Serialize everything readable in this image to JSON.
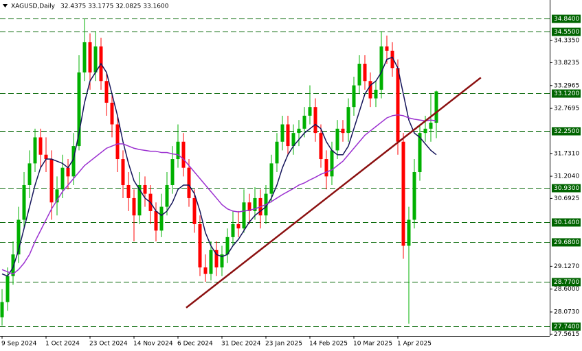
{
  "header": {
    "symbol": "XAGUSD,Daily",
    "quote": "32.4375 33.1775 32.0825 33.1600"
  },
  "chart_data": {
    "type": "candlestick",
    "categories": [
      "9 Sep 2024",
      null,
      null,
      null,
      null,
      null,
      null,
      null,
      "1 Oct 2024",
      null,
      null,
      null,
      null,
      null,
      null,
      null,
      "23 Oct 2024",
      null,
      null,
      null,
      null,
      null,
      null,
      null,
      "14 Nov 2024",
      null,
      null,
      null,
      null,
      null,
      null,
      null,
      "6 Dec 2024",
      null,
      null,
      null,
      null,
      null,
      null,
      null,
      "31 Dec 2024",
      null,
      null,
      null,
      null,
      null,
      null,
      null,
      "23 Jan 2025",
      null,
      null,
      null,
      null,
      null,
      null,
      null,
      "14 Feb 2025",
      null,
      null,
      null,
      null,
      null,
      null,
      null,
      "10 Mar 2025",
      null,
      null,
      null,
      null,
      null,
      null,
      null,
      "1 Apr 2025",
      null,
      null,
      null,
      null,
      null,
      null,
      null
    ],
    "open": [
      27.95,
      28.3,
      28.9,
      29.4,
      30.2,
      31.0,
      31.5,
      32.1,
      31.7,
      31.6,
      30.6,
      30.9,
      31.4,
      31.2,
      31.9,
      33.6,
      34.3,
      33.6,
      34.2,
      33.4,
      32.9,
      32.4,
      31.6,
      31.0,
      30.7,
      30.3,
      31.0,
      30.8,
      30.4,
      29.95,
      30.5,
      31.0,
      31.6,
      32.0,
      31.4,
      30.7,
      30.1,
      29.1,
      28.95,
      29.5,
      29.1,
      29.4,
      29.8,
      30.1,
      30.0,
      30.6,
      30.4,
      30.7,
      30.3,
      30.8,
      31.5,
      32.0,
      32.4,
      31.9,
      32.2,
      32.3,
      32.6,
      32.8,
      32.2,
      31.6,
      31.2,
      31.8,
      32.3,
      32.2,
      32.8,
      33.3,
      33.8,
      33.4,
      33.0,
      33.2,
      34.2,
      34.1,
      33.7,
      32.0,
      29.6,
      30.2,
      31.3,
      32.2,
      32.3,
      32.4375
    ],
    "high": [
      28.6,
      29.1,
      29.7,
      30.5,
      31.3,
      31.8,
      32.3,
      32.3,
      32.1,
      31.8,
      31.2,
      31.7,
      31.6,
      32.2,
      34.0,
      34.84,
      34.5,
      34.55,
      34.4,
      33.6,
      33.1,
      32.6,
      31.8,
      31.3,
      30.9,
      31.3,
      31.2,
      31.0,
      30.6,
      30.8,
      31.3,
      31.9,
      32.4,
      32.2,
      31.6,
      30.9,
      30.3,
      29.4,
      29.7,
      29.7,
      29.6,
      30.0,
      30.4,
      30.4,
      30.9,
      30.8,
      30.95,
      30.9,
      31.0,
      31.7,
      32.2,
      32.6,
      32.6,
      32.4,
      32.5,
      32.8,
      33.3,
      33.0,
      32.4,
      31.8,
      32.0,
      32.5,
      32.5,
      33.0,
      33.5,
      34.0,
      34.0,
      33.6,
      33.4,
      34.55,
      34.45,
      34.3,
      33.9,
      32.2,
      30.5,
      31.6,
      32.4,
      32.6,
      33.1,
      33.1775
    ],
    "low": [
      27.76,
      28.1,
      28.7,
      29.2,
      30.0,
      30.7,
      31.3,
      31.4,
      31.3,
      30.2,
      30.3,
      30.7,
      30.9,
      31.0,
      31.8,
      33.4,
      33.2,
      33.4,
      33.2,
      32.6,
      32.1,
      31.3,
      30.7,
      30.4,
      29.7,
      30.1,
      30.5,
      30.1,
      29.7,
      29.8,
      30.3,
      30.8,
      31.4,
      31.2,
      30.5,
      29.9,
      28.9,
      28.77,
      28.8,
      28.9,
      28.9,
      29.2,
      29.6,
      29.8,
      29.9,
      30.1,
      30.2,
      30.0,
      30.1,
      30.6,
      31.3,
      31.8,
      31.7,
      31.7,
      31.9,
      32.1,
      32.4,
      32.0,
      31.4,
      30.9,
      31.0,
      31.6,
      32.0,
      32.0,
      32.6,
      33.1,
      33.2,
      32.8,
      32.8,
      33.0,
      33.8,
      33.5,
      31.7,
      29.3,
      27.8,
      30.0,
      31.1,
      32.0,
      32.0,
      32.0825
    ],
    "close": [
      28.3,
      28.9,
      29.4,
      30.2,
      31.0,
      31.5,
      32.1,
      31.7,
      31.6,
      30.6,
      30.9,
      31.4,
      31.2,
      31.9,
      33.6,
      34.3,
      33.6,
      34.2,
      33.4,
      32.9,
      32.4,
      31.6,
      31.0,
      30.7,
      30.3,
      31.0,
      30.8,
      30.4,
      29.95,
      30.5,
      31.0,
      31.6,
      32.0,
      31.4,
      30.7,
      30.1,
      29.1,
      28.95,
      29.5,
      29.1,
      29.4,
      29.8,
      30.1,
      30.0,
      30.6,
      30.4,
      30.7,
      30.3,
      30.8,
      31.5,
      32.0,
      32.4,
      31.9,
      32.2,
      32.3,
      32.6,
      32.8,
      32.2,
      31.6,
      31.2,
      31.8,
      32.3,
      32.2,
      32.8,
      33.3,
      33.8,
      33.4,
      33.0,
      33.2,
      34.2,
      34.1,
      33.7,
      32.0,
      29.6,
      30.2,
      31.3,
      32.2,
      32.3,
      32.44,
      33.16
    ],
    "up_color": "#00b000",
    "down_color": "#ff0000",
    "lines": [
      {
        "color": "#14145a",
        "values": [
          28.95,
          28.9,
          29.1,
          29.5,
          30.0,
          30.5,
          31.0,
          31.4,
          31.6,
          31.6,
          31.55,
          31.5,
          31.4,
          31.6,
          32.2,
          32.9,
          33.4,
          33.6,
          33.8,
          33.6,
          33.1,
          32.6,
          32.0,
          31.5,
          31.1,
          30.9,
          30.7,
          30.6,
          30.4,
          30.3,
          30.4,
          30.6,
          30.9,
          31.0,
          31.0,
          30.8,
          30.4,
          29.9,
          29.6,
          29.4,
          29.35,
          29.4,
          29.6,
          29.75,
          29.95,
          30.15,
          30.3,
          30.4,
          30.5,
          30.7,
          31.0,
          31.4,
          31.7,
          31.9,
          32.05,
          32.2,
          32.3,
          32.4,
          32.3,
          32.0,
          31.8,
          31.7,
          31.7,
          31.9,
          32.3,
          32.7,
          33.1,
          33.3,
          33.4,
          33.6,
          33.9,
          33.95,
          33.7,
          33.1,
          32.5,
          32.2,
          32.1,
          31.95,
          31.8,
          31.7
        ]
      },
      {
        "color": "#9b30d0",
        "values": [
          29.05,
          29.0,
          28.95,
          29.05,
          29.2,
          29.4,
          29.7,
          29.95,
          30.2,
          30.45,
          30.65,
          30.85,
          31.0,
          31.15,
          31.3,
          31.45,
          31.55,
          31.65,
          31.75,
          31.85,
          31.9,
          31.95,
          31.95,
          31.9,
          31.85,
          31.82,
          31.8,
          31.78,
          31.78,
          31.75,
          31.75,
          31.72,
          31.7,
          31.6,
          31.45,
          31.3,
          31.15,
          31.0,
          30.85,
          30.7,
          30.55,
          30.45,
          30.4,
          30.38,
          30.4,
          30.42,
          30.45,
          30.5,
          30.55,
          30.62,
          30.7,
          30.78,
          30.85,
          30.92,
          31.0,
          31.05,
          31.12,
          31.18,
          31.25,
          31.3,
          31.35,
          31.45,
          31.55,
          31.7,
          31.85,
          32.0,
          32.15,
          32.25,
          32.35,
          32.45,
          32.55,
          32.6,
          32.62,
          32.6,
          32.55,
          32.52,
          32.5,
          32.48,
          32.5,
          32.48
        ]
      }
    ],
    "trendline": {
      "color": "#8b1010",
      "start": {
        "x": 33.5,
        "y": 28.17
      },
      "end": {
        "x": 87.1,
        "y": 33.48
      }
    },
    "levels": [
      {
        "value": 34.84,
        "label": "34.8400"
      },
      {
        "value": 34.55,
        "label": "34.5500"
      },
      {
        "value": 33.12,
        "label": "33.1200"
      },
      {
        "value": 32.25,
        "label": "32.2500"
      },
      {
        "value": 30.93,
        "label": "30.9300"
      },
      {
        "value": 30.14,
        "label": "30.1400"
      },
      {
        "value": 29.68,
        "label": "29.6800"
      },
      {
        "value": 28.77,
        "label": "28.7700"
      },
      {
        "value": 27.74,
        "label": "27.7400"
      }
    ],
    "level_color": "#006400",
    "ylim": [
      27.52,
      35.27
    ],
    "yticks": [
      {
        "value": 34.335,
        "label": "34.3350"
      },
      {
        "value": 33.8235,
        "label": "33.8235"
      },
      {
        "value": 33.2965,
        "label": "33.2965"
      },
      {
        "value": 32.7695,
        "label": "32.7695"
      },
      {
        "value": 31.731,
        "label": "31.7310"
      },
      {
        "value": 31.204,
        "label": "31.2040"
      },
      {
        "value": 30.6925,
        "label": "30.6925"
      },
      {
        "value": 29.127,
        "label": "29.1270"
      },
      {
        "value": 28.6,
        "label": "28.6000"
      },
      {
        "value": 28.073,
        "label": "28.0730"
      },
      {
        "value": 27.5615,
        "label": "27.5615"
      }
    ]
  }
}
